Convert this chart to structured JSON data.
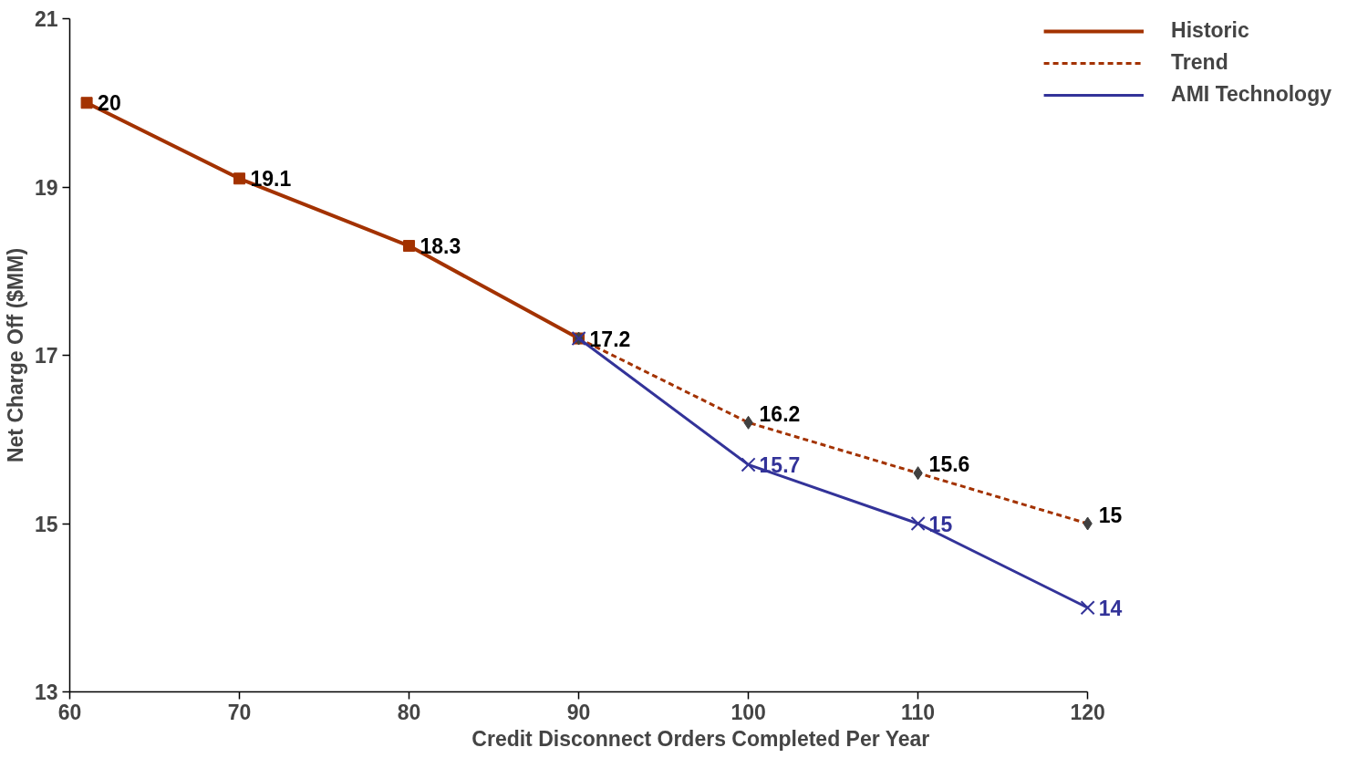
{
  "chart_data": {
    "type": "line",
    "xlabel": "Credit Disconnect Orders Completed Per Year",
    "ylabel": "Net Charge Off ($MM)",
    "xlim": [
      60,
      120
    ],
    "xticks": [
      60,
      70,
      80,
      90,
      100,
      110,
      120
    ],
    "ylim": [
      13,
      21
    ],
    "yticks": [
      13,
      15,
      17,
      19,
      21
    ],
    "grid": false,
    "legend": "top right",
    "series": [
      {
        "name": "Historic",
        "color": "#a33200",
        "x": [
          61,
          70,
          80,
          90
        ],
        "values": [
          20,
          19.1,
          18.3,
          17.2
        ],
        "marker": "square",
        "line_style": "solid",
        "value_labels": [
          "20",
          "19.1",
          "18.3",
          "17.2"
        ]
      },
      {
        "name": "Trend",
        "color": "#a33200",
        "x": [
          90,
          100,
          110,
          120
        ],
        "values": [
          17.2,
          16.2,
          15.6,
          15
        ],
        "marker": "diamond",
        "line_style": "dashed",
        "value_labels": [
          null,
          "16.2",
          "15.6",
          "15"
        ]
      },
      {
        "name": "AMI Technology",
        "color": "#333399",
        "x": [
          90,
          100,
          110,
          120
        ],
        "values": [
          17.2,
          15.7,
          15,
          14
        ],
        "marker": "cross",
        "line_style": "solid",
        "value_labels": [
          null,
          "15.7",
          "15",
          "14"
        ]
      }
    ]
  }
}
